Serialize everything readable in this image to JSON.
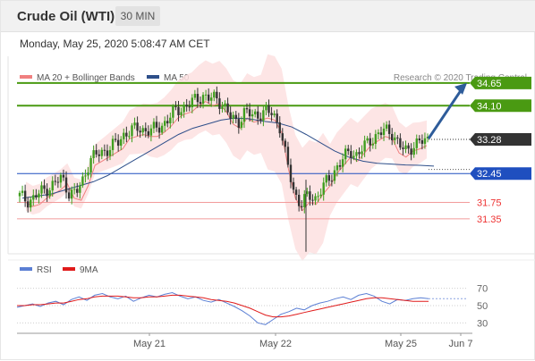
{
  "header": {
    "title": "Crude Oil (WTI)",
    "timeframe": "30 MIN",
    "datetime": "Monday, May 25, 2020 5:08:47 AM CET"
  },
  "legend": [
    {
      "label": "MA 20 + Bollinger Bands",
      "color": "#f08080"
    },
    {
      "label": "MA 50",
      "color": "#2e4f8a"
    }
  ],
  "credit": "Research © 2020 Trading Central",
  "rsi_legend": [
    {
      "label": "RSI",
      "color": "#5b7fd4"
    },
    {
      "label": "9MA",
      "color": "#e01b1b"
    }
  ],
  "colors": {
    "resistance": "#4a9a12",
    "pivot": "#1f4fbf",
    "support": "#f29b9b",
    "candle_up": "#3f9e1e",
    "candle_down": "#333333",
    "last_price": "#333333",
    "arrow": "#2e5c9a",
    "band_fill": "#fde0e0"
  },
  "chart_data": [
    {
      "type": "candlestick",
      "title": "Crude Oil (WTI)",
      "ylim": [
        30.5,
        35.3
      ],
      "x_ticks": [
        "May 21",
        "May 22",
        "May 25",
        "Jun 7"
      ],
      "levels": [
        {
          "label": "34.65",
          "value": 34.65,
          "kind": "resistance"
        },
        {
          "label": "34.10",
          "value": 34.1,
          "kind": "resistance"
        },
        {
          "label": "33.28",
          "value": 33.28,
          "kind": "last"
        },
        {
          "label": "32.45",
          "value": 32.45,
          "kind": "pivot"
        },
        {
          "label": "31.75",
          "value": 31.75,
          "kind": "support"
        },
        {
          "label": "31.35",
          "value": 31.35,
          "kind": "support"
        }
      ],
      "forecast_target": 34.65,
      "series": [
        {
          "name": "MA 20 + Bollinger Bands",
          "close": [
            31.9,
            31.8,
            31.85,
            32.0,
            32.1,
            32.2,
            32.35,
            32.0,
            31.95,
            32.3,
            32.8,
            32.9,
            33.0,
            33.1,
            33.2,
            33.45,
            33.5,
            33.55,
            33.5,
            33.5,
            33.6,
            33.75,
            33.95,
            34.05,
            34.1,
            34.25,
            34.35,
            34.25,
            34.3,
            34.1,
            33.8,
            33.7,
            33.95,
            33.85,
            33.9,
            33.95,
            33.9,
            33.6,
            32.7,
            32.0,
            31.7,
            31.9,
            31.85,
            32.1,
            32.3,
            32.6,
            32.8,
            33.0,
            32.9,
            33.1,
            33.3,
            33.4,
            33.5,
            33.45,
            33.1,
            33.0,
            33.15,
            33.2,
            33.28
          ]
        },
        {
          "name": "MA 50",
          "values": [
            31.85,
            31.9,
            31.95,
            32.05,
            32.15,
            32.25,
            32.4,
            32.6,
            32.8,
            33.0,
            33.2,
            33.4,
            33.55,
            33.65,
            33.75,
            33.8,
            33.78,
            33.72,
            33.68,
            33.58,
            33.4,
            33.2,
            33.0,
            32.85,
            32.75,
            32.7,
            32.68,
            32.66,
            32.65,
            32.63
          ]
        }
      ]
    },
    {
      "type": "line",
      "ylim": [
        20,
        80
      ],
      "y_ticks": [
        70,
        50,
        30
      ],
      "series": [
        {
          "name": "RSI",
          "values": [
            48,
            50,
            52,
            49,
            53,
            55,
            51,
            57,
            60,
            56,
            62,
            64,
            60,
            58,
            61,
            55,
            59,
            62,
            60,
            63,
            65,
            61,
            58,
            60,
            56,
            54,
            57,
            53,
            49,
            44,
            38,
            30,
            28,
            34,
            40,
            43,
            47,
            45,
            50,
            53,
            55,
            58,
            60,
            57,
            62,
            64,
            61,
            55,
            52,
            57,
            56,
            58,
            59,
            58
          ]
        },
        {
          "name": "9MA",
          "values": [
            50,
            50,
            51,
            51,
            52,
            53,
            53,
            55,
            57,
            58,
            60,
            61,
            61,
            61,
            60,
            59,
            59,
            60,
            60,
            61,
            62,
            62,
            61,
            60,
            59,
            57,
            56,
            55,
            53,
            50,
            47,
            43,
            39,
            37,
            37,
            38,
            40,
            42,
            44,
            46,
            48,
            50,
            52,
            54,
            56,
            58,
            59,
            59,
            58,
            57,
            56,
            55,
            55,
            55
          ]
        }
      ]
    }
  ]
}
